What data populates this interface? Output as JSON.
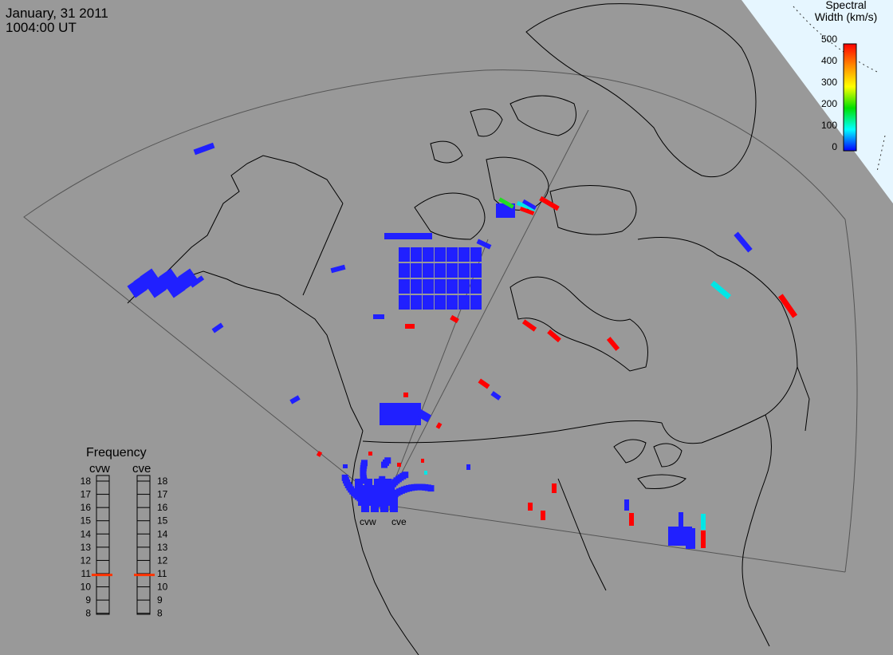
{
  "header": {
    "date": "January, 31 2011",
    "time": "1004:00 UT"
  },
  "colorbar": {
    "title_line1": "Spectral",
    "title_line2": "Width (km/s)",
    "ticks": [
      "500",
      "400",
      "300",
      "200",
      "100",
      "0"
    ],
    "min": 0,
    "max": 500,
    "gradient": [
      "#ff0000",
      "#ff8800",
      "#ffff00",
      "#00e000",
      "#00ffff",
      "#0000ff"
    ]
  },
  "frequency_panel": {
    "title": "Frequency",
    "radars": [
      "cvw",
      "cve"
    ],
    "scale": [
      "18",
      "17",
      "16",
      "15",
      "14",
      "13",
      "12",
      "11",
      "10",
      "9",
      "8"
    ],
    "indicated_mhz": {
      "cvw": 10.9,
      "cve": 10.9
    },
    "indicator_color": "#ff3300"
  },
  "radar_sites": [
    "cvw",
    "cve"
  ],
  "map": {
    "background": "#999999",
    "coast_color": "#000000",
    "fov_line_color": "#555555",
    "daylight_color": "#e6f6ff"
  },
  "scatter_colors": {
    "low": "#2020ff",
    "cyan": "#00e6e6",
    "green": "#22dd22",
    "red": "#ff0000"
  }
}
